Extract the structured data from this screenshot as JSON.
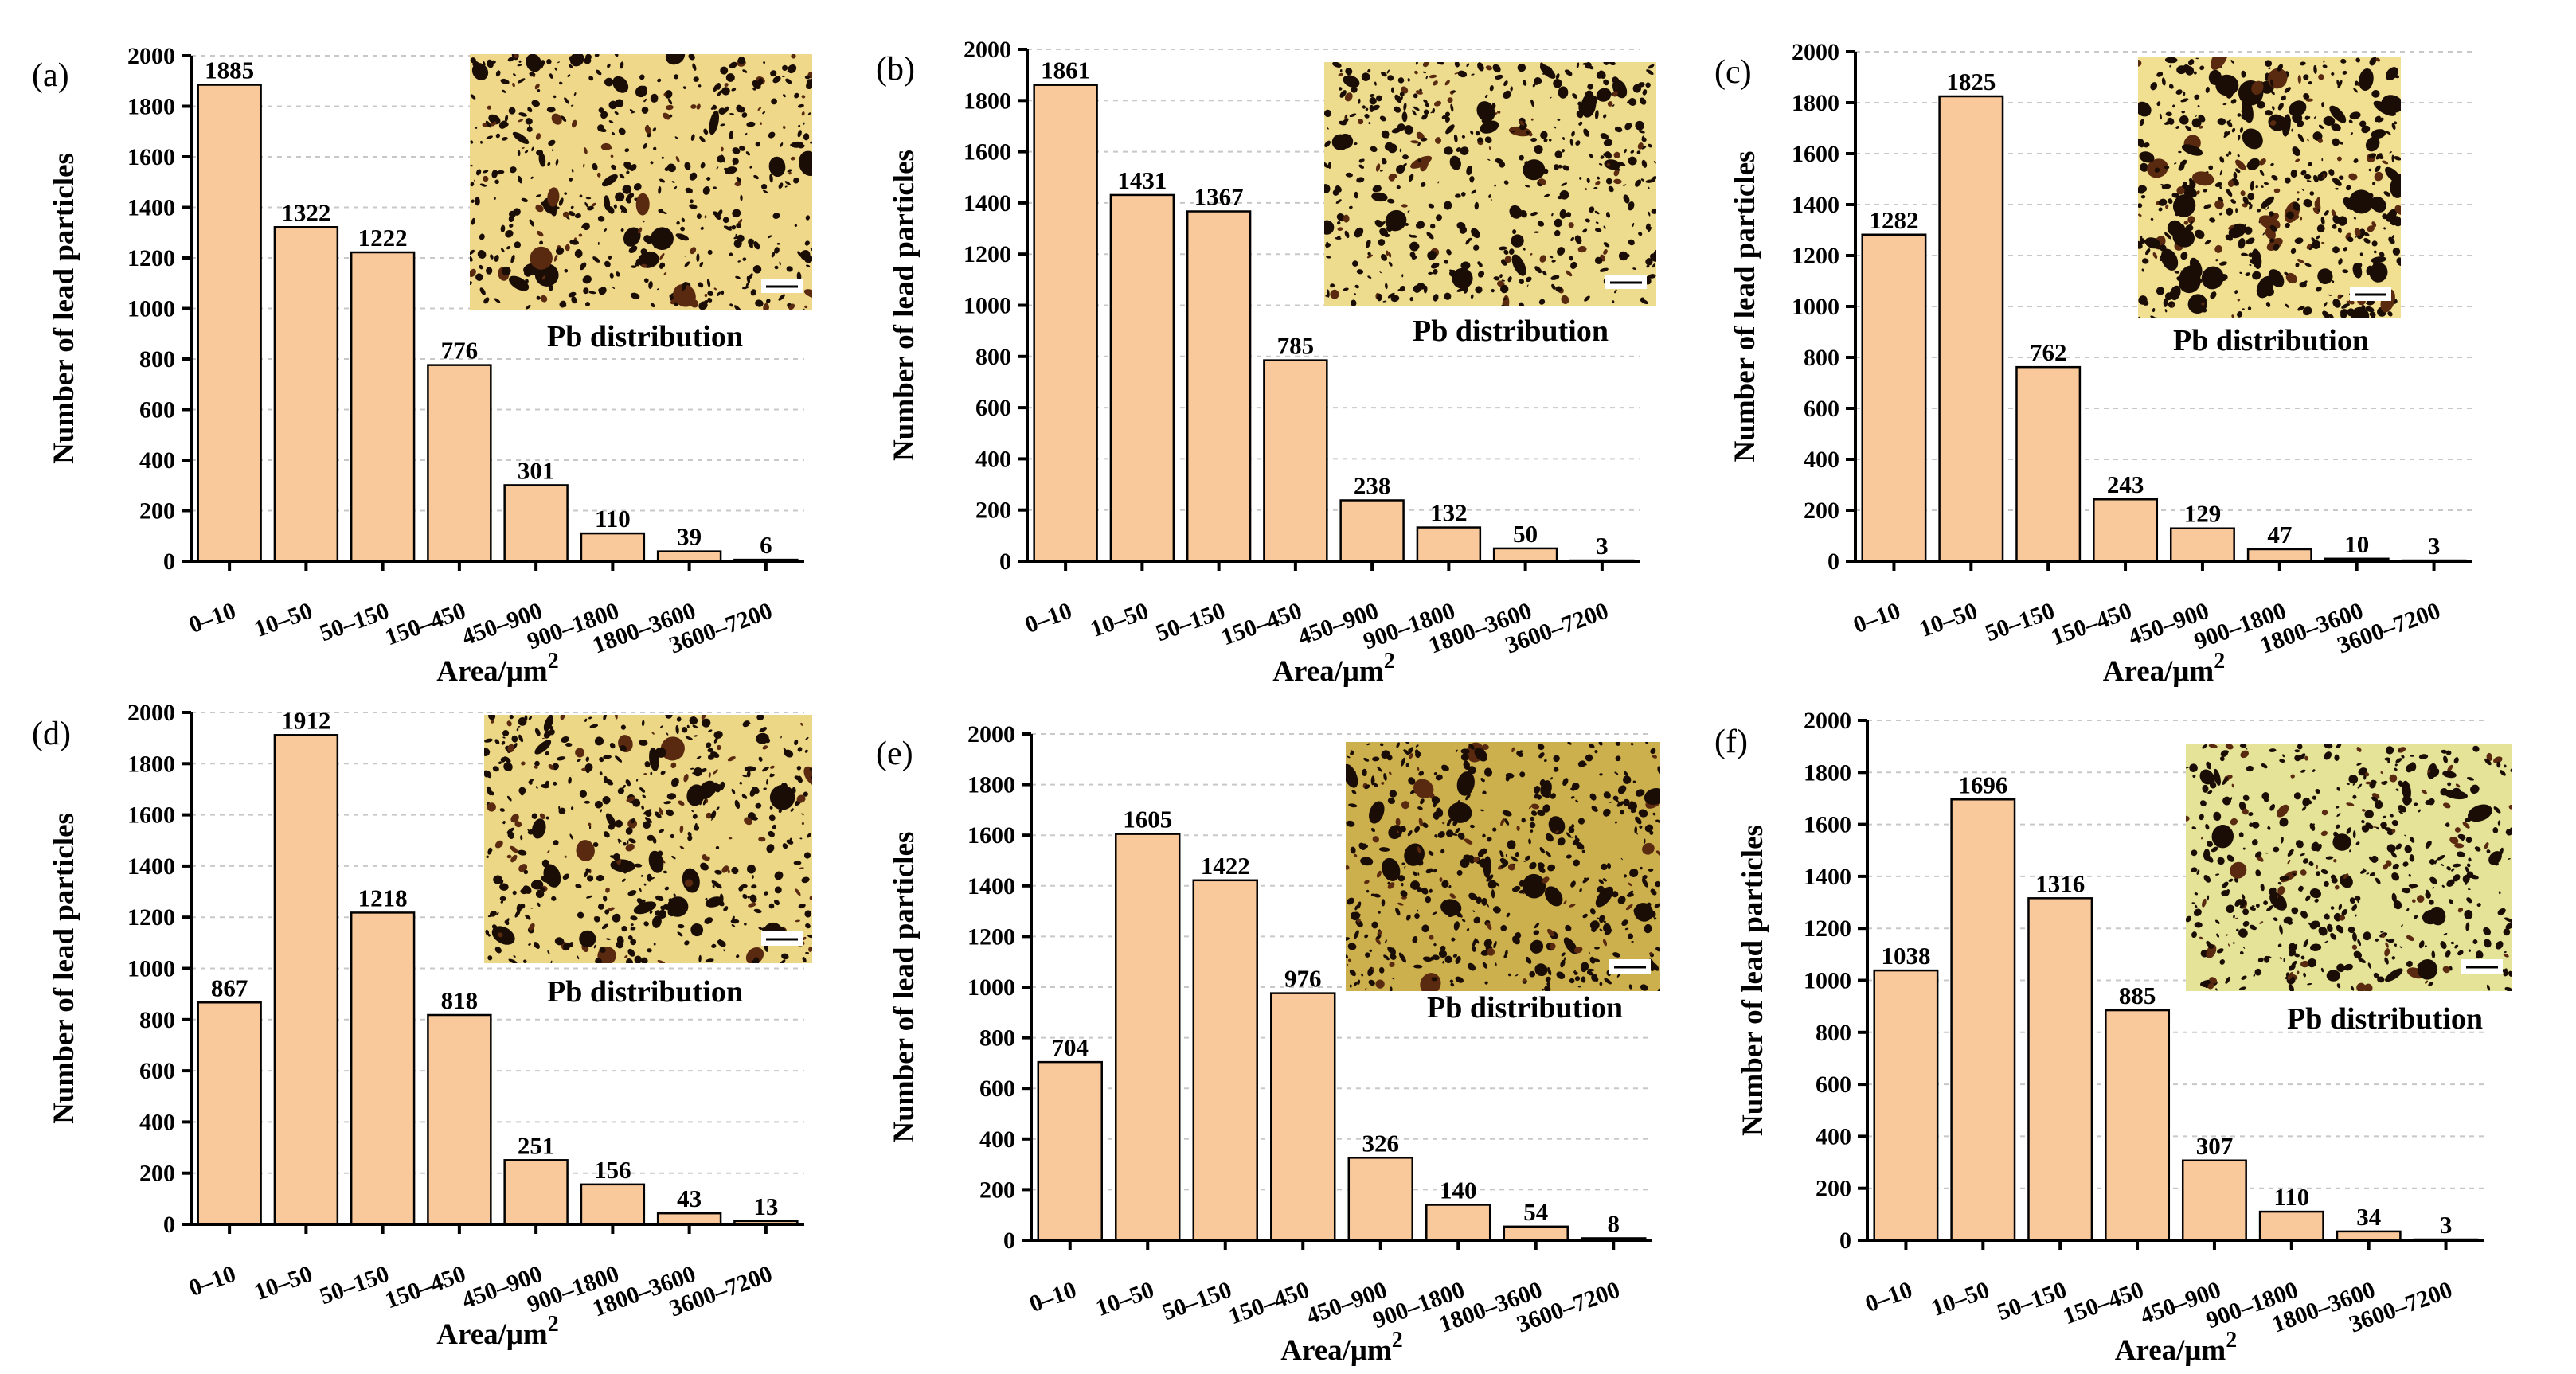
{
  "colors": {
    "bar_fill": "#F9C89B",
    "bar_stroke": "#000000",
    "grid": "#c8c8c8",
    "inset_bg": [
      "#EFD88A",
      "#EDDC8E",
      "#F1E091",
      "#EBD785",
      "#CCB04D",
      "#E4E398"
    ],
    "inset_particle": "#1a0d05",
    "inset_particle_alt": "#5a2a10"
  },
  "inset": {
    "label": "Pb distribution",
    "icon": "micrograph-image"
  },
  "chart_data": [
    {
      "type": "bar",
      "panel": "(a)",
      "categories": [
        "0–10",
        "10–50",
        "50–150",
        "150–450",
        "450–900",
        "900–1800",
        "1800–3600",
        "3600–7200"
      ],
      "values": [
        1885,
        1322,
        1222,
        776,
        301,
        110,
        39,
        6
      ],
      "xlabel": "Area/μm",
      "xlabel_sup": "2",
      "ylabel": "Number of lead particles",
      "ylim": [
        0,
        2000
      ],
      "yticks": [
        0,
        200,
        400,
        600,
        800,
        1000,
        1200,
        1400,
        1600,
        1800,
        2000
      ],
      "grid": true,
      "inset_label": "Pb distribution"
    },
    {
      "type": "bar",
      "panel": "(b)",
      "categories": [
        "0–10",
        "10–50",
        "50–150",
        "150–450",
        "450–900",
        "900–1800",
        "1800–3600",
        "3600–7200"
      ],
      "values": [
        1861,
        1431,
        1367,
        785,
        238,
        132,
        50,
        3
      ],
      "xlabel": "Area/μm",
      "xlabel_sup": "2",
      "ylabel": "Number of lead particles",
      "ylim": [
        0,
        2000
      ],
      "yticks": [
        0,
        200,
        400,
        600,
        800,
        1000,
        1200,
        1400,
        1600,
        1800,
        2000
      ],
      "grid": true,
      "inset_label": "Pb distribution"
    },
    {
      "type": "bar",
      "panel": "(c)",
      "categories": [
        "0–10",
        "10–50",
        "50–150",
        "150–450",
        "450–900",
        "900–1800",
        "1800–3600",
        "3600–7200"
      ],
      "values": [
        1282,
        1825,
        762,
        243,
        129,
        47,
        10,
        3
      ],
      "xlabel": "Area/μm",
      "xlabel_sup": "2",
      "ylabel": "Number of lead particles",
      "ylim": [
        0,
        2000
      ],
      "yticks": [
        0,
        200,
        400,
        600,
        800,
        1000,
        1200,
        1400,
        1600,
        1800,
        2000
      ],
      "grid": true,
      "inset_label": "Pb distribution"
    },
    {
      "type": "bar",
      "panel": "(d)",
      "categories": [
        "0–10",
        "10–50",
        "50–150",
        "150–450",
        "450–900",
        "900–1800",
        "1800–3600",
        "3600–7200"
      ],
      "values": [
        867,
        1912,
        1218,
        818,
        251,
        156,
        43,
        13
      ],
      "xlabel": "Area/μm",
      "xlabel_sup": "2",
      "ylabel": "Number of lead particles",
      "ylim": [
        0,
        2000
      ],
      "yticks": [
        0,
        200,
        400,
        600,
        800,
        1000,
        1200,
        1400,
        1600,
        1800,
        2000
      ],
      "grid": true,
      "inset_label": "Pb distribution"
    },
    {
      "type": "bar",
      "panel": "(e)",
      "categories": [
        "0–10",
        "10–50",
        "50–150",
        "150–450",
        "450–900",
        "900–1800",
        "1800–3600",
        "3600–7200"
      ],
      "values": [
        704,
        1605,
        1422,
        976,
        326,
        140,
        54,
        8
      ],
      "xlabel": "Area/μm",
      "xlabel_sup": "2",
      "ylabel": "Number of lead particles",
      "ylim": [
        0,
        2000
      ],
      "yticks": [
        0,
        200,
        400,
        600,
        800,
        1000,
        1200,
        1400,
        1600,
        1800,
        2000
      ],
      "grid": true,
      "inset_label": "Pb distribution"
    },
    {
      "type": "bar",
      "panel": "(f)",
      "categories": [
        "0–10",
        "10–50",
        "50–150",
        "150–450",
        "450–900",
        "900–1800",
        "1800–3600",
        "3600–7200"
      ],
      "values": [
        1038,
        1696,
        1316,
        885,
        307,
        110,
        34,
        3
      ],
      "xlabel": "Area/μm",
      "xlabel_sup": "2",
      "ylabel": "Number of lead particles",
      "ylim": [
        0,
        2000
      ],
      "yticks": [
        0,
        200,
        400,
        600,
        800,
        1000,
        1200,
        1400,
        1600,
        1800,
        2000
      ],
      "grid": true,
      "inset_label": "Pb distribution"
    }
  ]
}
